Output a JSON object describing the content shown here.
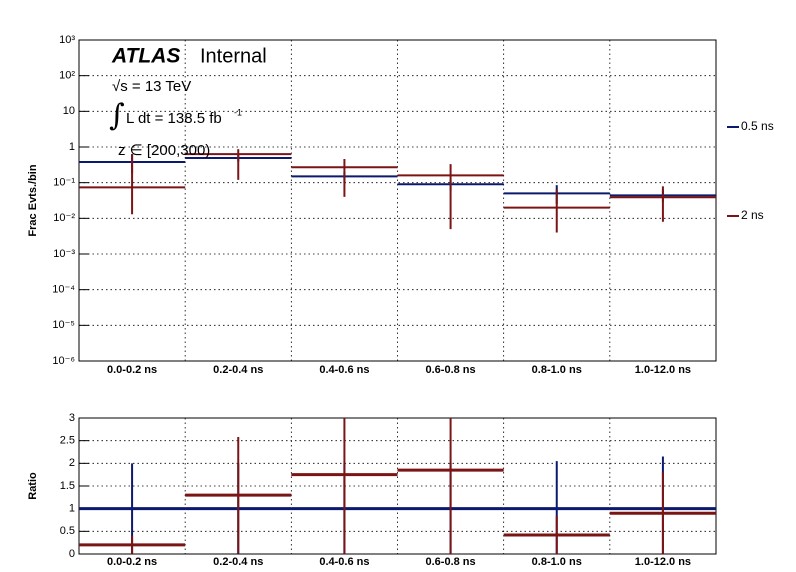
{
  "chart_data": [
    {
      "type": "errorbar",
      "y_label": "Frac Evts./bin",
      "annotations": [
        "ATLAS",
        "Internal",
        "√s = 13 TeV",
        "∫",
        "L dt = 138.5 fb",
        "-1",
        "z ∈ [200,300)"
      ],
      "categories": [
        "0.0-0.2 ns",
        "0.2-0.4 ns",
        "0.4-0.6 ns",
        "0.6-0.8 ns",
        "0.8-1.0 ns",
        "1.0-12.0 ns"
      ],
      "log_y": true,
      "grid": true,
      "legend": "right",
      "ylim": [
        1e-06,
        1000
      ],
      "yticks": [
        {
          "value": 1000,
          "label": "10³"
        },
        {
          "value": 100,
          "label": "10²"
        },
        10,
        1,
        {
          "value": 0.1,
          "label": "10⁻¹"
        },
        {
          "value": 0.01,
          "label": "10⁻²"
        },
        {
          "value": 0.001,
          "label": "10⁻³"
        },
        {
          "value": 0.0001,
          "label": "10⁻⁴"
        },
        {
          "value": 1e-05,
          "label": "10⁻⁵"
        },
        {
          "value": 1e-06,
          "label": "10⁻⁶"
        }
      ],
      "series": [
        {
          "name": "0.5 ns",
          "color": "#0b1a6e",
          "values": [
            0.38,
            0.49,
            0.15,
            0.09,
            0.05,
            0.044
          ],
          "yerr": [
            [
              0.2,
              0.25
            ],
            [
              0.1,
              0.1
            ],
            [
              0.05,
              0.05
            ],
            [
              0.03,
              0.03
            ],
            [
              0.025,
              0.035
            ],
            [
              0.015,
              0.02
            ]
          ]
        },
        {
          "name": "2 ns",
          "color": "#7b1515",
          "values": [
            0.074,
            0.63,
            0.27,
            0.16,
            0.02,
            0.039
          ],
          "yerr": [
            [
              0.061,
              0.56
            ],
            [
              0.51,
              0.24
            ],
            [
              0.23,
              0.19
            ],
            [
              0.155,
              0.17
            ],
            [
              0.016,
              0.045
            ],
            [
              0.031,
              0.04
            ]
          ]
        }
      ]
    },
    {
      "type": "errorbar",
      "y_label": "Ratio",
      "categories": [
        "0.0-0.2 ns",
        "0.2-0.4 ns",
        "0.4-0.6 ns",
        "0.6-0.8 ns",
        "0.8-1.0 ns",
        "1.0-12.0 ns"
      ],
      "log_y": false,
      "grid": true,
      "ylim": [
        0,
        3
      ],
      "yticks": [
        0,
        0.5,
        1,
        1.5,
        2,
        2.5,
        3
      ],
      "series": [
        {
          "color": "#0b1a6e",
          "values": [
            1,
            1,
            1,
            1,
            1,
            1
          ],
          "yerr": [
            [
              1,
              1
            ],
            [
              1,
              1
            ],
            [
              1,
              1
            ],
            [
              1,
              1
            ],
            [
              1.05,
              1.05
            ],
            [
              1.15,
              1.15
            ]
          ]
        },
        {
          "color": "#7b1515",
          "values": [
            0.2,
            1.3,
            1.75,
            1.85,
            0.42,
            0.9
          ],
          "yerr": [
            [
              0.2,
              0.2
            ],
            [
              1.28,
              1.28
            ],
            [
              1.75,
              1.75
            ],
            [
              1.85,
              1.85
            ],
            [
              0.42,
              0.42
            ],
            [
              0.9,
              0.9
            ]
          ]
        }
      ]
    }
  ]
}
